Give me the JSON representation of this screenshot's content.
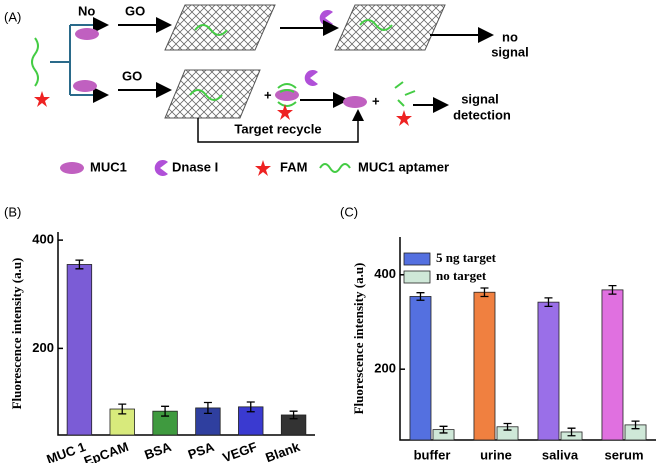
{
  "diagram": {
    "label": "(A)",
    "no": "No",
    "go_top": "GO",
    "go_bottom": "GO",
    "no_signal": [
      "no",
      "signal"
    ],
    "signal_detection": [
      "signal",
      "detection"
    ],
    "target_recycle": "Target recycle",
    "legend": [
      "MUC1",
      "Dnase I",
      "FAM",
      "MUC1 aptamer"
    ]
  },
  "chart_data": [
    {
      "type": "bar",
      "panel": "(B)",
      "y_label": "Fluorescence intensity (a.u)",
      "categories": [
        "MUC 1",
        "EpCAM",
        "BSA",
        "PSA",
        "VEGF",
        "Blank"
      ],
      "values": [
        355,
        88,
        84,
        90,
        92,
        77
      ],
      "errors": [
        8,
        9,
        9,
        10,
        9,
        7
      ],
      "colors": [
        "#7b5cd6",
        "#d8ea7c",
        "#3f9a3f",
        "#2f3f9f",
        "#3a3ad0",
        "#333333"
      ],
      "ylim": [
        40,
        415
      ],
      "yticks": [
        200,
        400
      ]
    },
    {
      "type": "bar",
      "panel": "(C)",
      "y_label": "Fluorescence intensity (a.u)",
      "categories": [
        "buffer",
        "urine",
        "saliva",
        "serum"
      ],
      "series": [
        {
          "name": "5 ng target",
          "colors": [
            "#5470e0",
            "#f08040",
            "#9a6fe8",
            "#e070e0"
          ],
          "values": [
            354,
            363,
            342,
            368
          ],
          "errors": [
            8,
            9,
            9,
            9
          ]
        },
        {
          "name": "no target",
          "colors": [
            "#cfe8d8",
            "#cfe8d8",
            "#cfe8d8",
            "#cfe8d8"
          ],
          "values": [
            72,
            78,
            67,
            82
          ],
          "errors": [
            7,
            7,
            8,
            8
          ]
        }
      ],
      "ylim": [
        50,
        480
      ],
      "yticks": [
        200,
        400
      ],
      "legend": "upper left"
    }
  ]
}
